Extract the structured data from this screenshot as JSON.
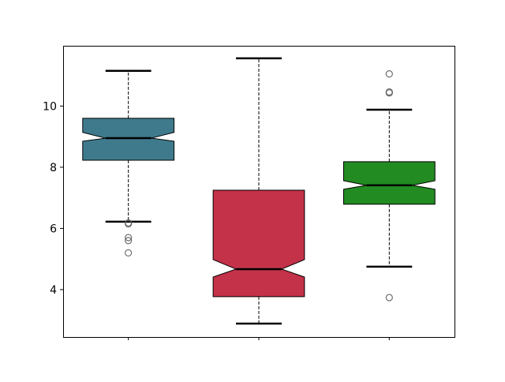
{
  "chart_data": {
    "type": "boxplot",
    "title": "",
    "xlabel": "",
    "ylabel": "",
    "notched": true,
    "ylim": [
      2.45,
      11.97
    ],
    "yticks": [
      4,
      6,
      8,
      10
    ],
    "ytick_labels": [
      "4",
      "6",
      "8",
      "10"
    ],
    "xtick_labels": [
      "",
      "",
      ""
    ],
    "grid": false,
    "boxes": [
      {
        "color": "#3f7a8c",
        "whisker_low": 6.22,
        "q1": 8.23,
        "notch_low": 8.85,
        "median": 8.95,
        "notch_high": 9.14,
        "q3": 9.6,
        "whisker_high": 11.15,
        "outliers": [
          6.15,
          6.18,
          5.7,
          5.6,
          5.2
        ]
      },
      {
        "color": "#c33249",
        "whisker_low": 2.89,
        "q1": 3.77,
        "notch_low": 4.41,
        "median": 4.67,
        "notch_high": 4.98,
        "q3": 7.25,
        "whisker_high": 11.56,
        "outliers": []
      },
      {
        "color": "#228b22",
        "whisker_low": 4.75,
        "q1": 6.79,
        "notch_low": 7.28,
        "median": 7.41,
        "notch_high": 7.56,
        "q3": 8.18,
        "whisker_high": 9.88,
        "outliers": [
          11.05,
          10.43,
          10.46,
          3.74
        ]
      }
    ]
  }
}
